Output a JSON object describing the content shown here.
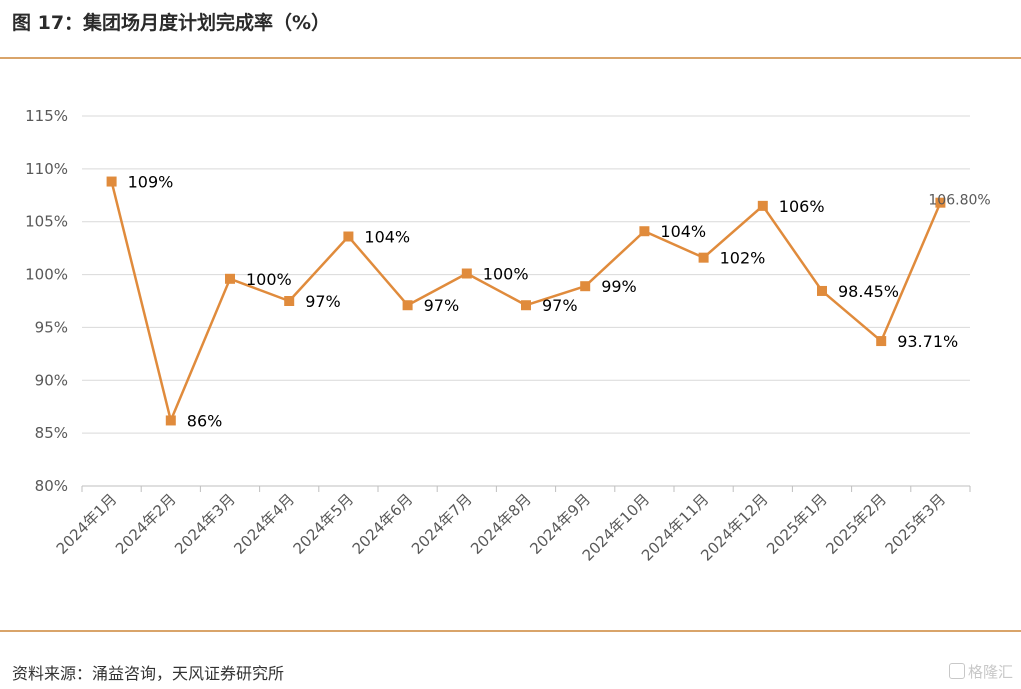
{
  "header": {
    "title": "图 17：集团场月度计划完成率（%）"
  },
  "footer": {
    "source": "资料来源：涌益咨询，天风证券研究所",
    "watermark": "格隆汇"
  },
  "chart_data": {
    "type": "line",
    "title": "图 17：集团场月度计划完成率（%）",
    "xlabel": "",
    "ylabel": "",
    "ylim": [
      80,
      115
    ],
    "yticks": [
      80,
      85,
      90,
      95,
      100,
      105,
      110,
      115
    ],
    "ytick_labels": [
      "80%",
      "85%",
      "90%",
      "95%",
      "100%",
      "105%",
      "110%",
      "115%"
    ],
    "grid": true,
    "legend": "none",
    "color": "#e08b3c",
    "categories": [
      "2024年1月",
      "2024年2月",
      "2024年3月",
      "2024年4月",
      "2024年5月",
      "2024年6月",
      "2024年7月",
      "2024年8月",
      "2024年9月",
      "2024年10月",
      "2024年11月",
      "2024年12月",
      "2025年1月",
      "2025年2月",
      "2025年3月"
    ],
    "values": [
      108.8,
      86.2,
      99.6,
      97.5,
      103.6,
      97.1,
      100.1,
      97.1,
      98.9,
      104.1,
      101.6,
      106.5,
      98.45,
      93.71,
      106.8
    ],
    "data_labels": [
      "109%",
      "86%",
      "100%",
      "97%",
      "104%",
      "97%",
      "100%",
      "97%",
      "99%",
      "104%",
      "102%",
      "106%",
      "98.45%",
      "93.71%",
      "106.80%"
    ]
  }
}
